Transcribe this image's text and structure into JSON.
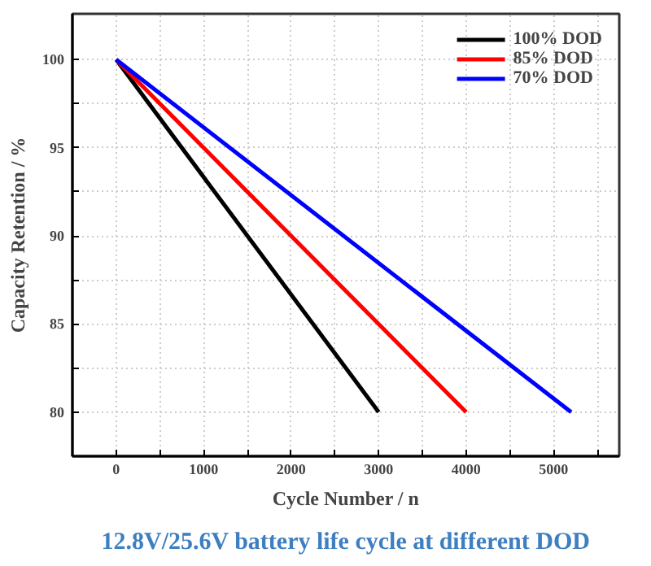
{
  "chart_data": {
    "type": "line",
    "title": "12.8V/25.6V battery life cycle at different DOD",
    "xlabel": "Cycle Number / n",
    "ylabel": "Capacity Retention / %",
    "series": [
      {
        "name": "100% DOD",
        "color": "#000000",
        "x": [
          0,
          3000
        ],
        "values": [
          100,
          80
        ]
      },
      {
        "name": "85% DOD",
        "color": "#ff0000",
        "x": [
          0,
          4000
        ],
        "values": [
          100,
          80
        ]
      },
      {
        "name": "70% DOD",
        "color": "#0000ff",
        "x": [
          0,
          5200
        ],
        "values": [
          100,
          80
        ]
      }
    ],
    "xlim": [
      -500,
      5750
    ],
    "ylim": [
      77.5,
      102.6
    ],
    "xticks": [
      {
        "value": -500,
        "label": null
      },
      0,
      {
        "value": 500,
        "label": null
      },
      1000,
      {
        "value": 1500,
        "label": null
      },
      2000,
      {
        "value": 2500,
        "label": null
      },
      3000,
      {
        "value": 3500,
        "label": null
      },
      4000,
      {
        "value": 4500,
        "label": null
      },
      5000,
      {
        "value": 5500,
        "label": null
      }
    ],
    "yticks": [
      {
        "value": 77.5,
        "label": null
      },
      80,
      {
        "value": 82.5,
        "label": null
      },
      85,
      {
        "value": 87.5,
        "label": null
      },
      90,
      {
        "value": 92.5,
        "label": null
      },
      95,
      {
        "value": 97.5,
        "label": null
      },
      100
    ],
    "grid": true,
    "legend": "top right",
    "marker": "none",
    "line_style": "solid"
  }
}
